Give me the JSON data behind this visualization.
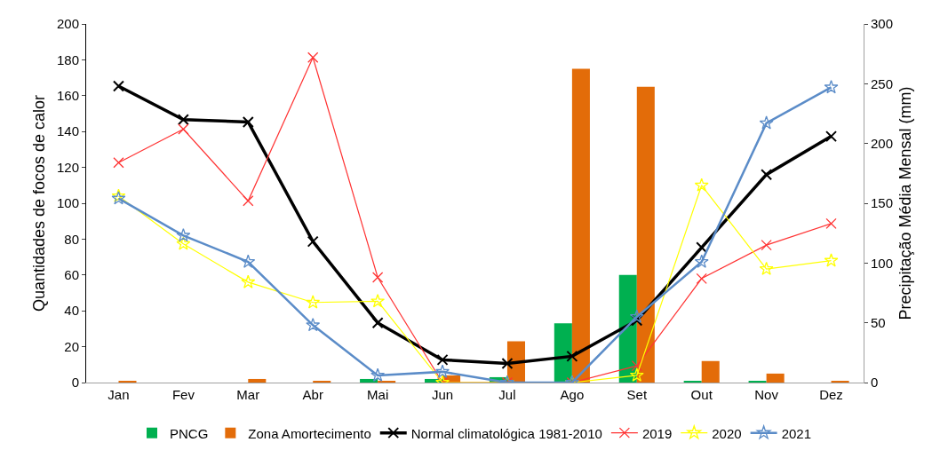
{
  "chart_data": {
    "type": "bar",
    "categories": [
      "Jan",
      "Fev",
      "Mar",
      "Abr",
      "Mai",
      "Jun",
      "Jul",
      "Ago",
      "Set",
      "Out",
      "Nov",
      "Dez"
    ],
    "ylabel": "Quantidades de focos de calor",
    "y2label": "Precipitação Média Mensal (mm)",
    "ylim": [
      0,
      200
    ],
    "yticks": [
      0,
      20,
      40,
      60,
      80,
      100,
      120,
      140,
      160,
      180,
      200
    ],
    "y2lim": [
      0,
      300
    ],
    "y2ticks": [
      0,
      50,
      100,
      150,
      200,
      250,
      300
    ],
    "legend": "bottom",
    "series": [
      {
        "name": "PNCG",
        "color": "#00b050",
        "values": [
          0,
          0,
          0,
          0,
          2,
          2,
          3,
          33,
          60,
          1,
          0.5,
          0
        ]
      },
      {
        "name": "Zona Amortecimento",
        "color": "#e36c09",
        "values": [
          1,
          0,
          2,
          1,
          1,
          4,
          23,
          175,
          165,
          12,
          5,
          1
        ]
      },
      {
        "name": "Normal climatológica 1981-2010",
        "type": "line",
        "axis": "y2",
        "color": "#000000",
        "marker": "cross",
        "values": [
          248,
          220,
          218,
          118,
          50,
          19,
          16,
          22,
          52,
          113,
          174,
          206
        ]
      },
      {
        "name": "2019",
        "type": "line",
        "axis": "y2",
        "color": "#ff3333",
        "marker": "cross",
        "values": [
          184,
          212,
          152,
          272,
          88,
          0,
          0,
          0,
          14,
          87,
          115,
          133
        ]
      },
      {
        "name": "2020",
        "type": "line",
        "axis": "y2",
        "color": "#ffff00",
        "marker": "star",
        "values": [
          156,
          116,
          84,
          67,
          68,
          0,
          0,
          0,
          6,
          165,
          95,
          102
        ]
      },
      {
        "name": "2021",
        "type": "line",
        "axis": "y2",
        "color": "#5b8cc8",
        "marker": "star",
        "values": [
          154,
          123,
          101,
          48,
          6,
          9,
          0,
          0,
          55,
          101,
          217,
          247
        ]
      }
    ]
  }
}
